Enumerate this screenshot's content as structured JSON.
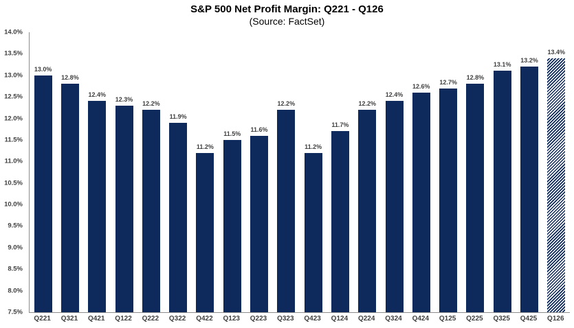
{
  "colors": {
    "bar": "#0e2a5c",
    "axis": "#8c8c8c",
    "label": "#404040",
    "title": "#000000",
    "background": "#ffffff"
  },
  "chart_data": {
    "type": "bar",
    "title": "S&P 500 Net Profit Margin: Q221 - Q126",
    "subtitle": "(Source: FactSet)",
    "xlabel": "",
    "ylabel": "",
    "categories": [
      "Q221",
      "Q321",
      "Q421",
      "Q122",
      "Q222",
      "Q322",
      "Q422",
      "Q123",
      "Q223",
      "Q323",
      "Q423",
      "Q124",
      "Q224",
      "Q324",
      "Q424",
      "Q125",
      "Q225",
      "Q325",
      "Q425",
      "Q126"
    ],
    "values": [
      13.0,
      12.8,
      12.4,
      12.3,
      12.2,
      11.9,
      11.2,
      11.5,
      11.6,
      12.2,
      11.2,
      11.7,
      12.2,
      12.4,
      12.6,
      12.7,
      12.8,
      13.1,
      13.2,
      13.4
    ],
    "value_labels": [
      "13.0%",
      "12.8%",
      "12.4%",
      "12.3%",
      "12.2%",
      "11.9%",
      "11.2%",
      "11.5%",
      "11.6%",
      "12.2%",
      "11.2%",
      "11.7%",
      "12.2%",
      "12.4%",
      "12.6%",
      "12.7%",
      "12.8%",
      "13.1%",
      "13.2%",
      "13.4%"
    ],
    "ylim": [
      7.5,
      14.0
    ],
    "yticks": [
      "14.0%",
      "13.5%",
      "13.0%",
      "12.5%",
      "12.0%",
      "11.5%",
      "11.0%",
      "10.5%",
      "10.0%",
      "9.5%",
      "9.0%",
      "8.5%",
      "8.0%",
      "7.5%"
    ],
    "grid": false,
    "legend_position": "none",
    "hatched_categories": [
      "Q126"
    ]
  }
}
